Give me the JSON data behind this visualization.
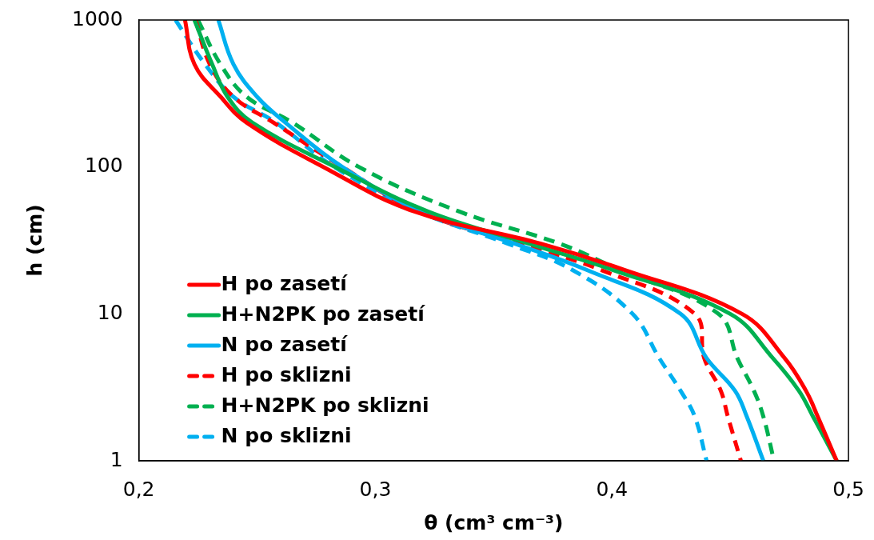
{
  "chart_data": {
    "type": "line",
    "xlabel": "θ (cm³ cm⁻³)",
    "ylabel": "h (cm)",
    "log": "y",
    "xlim": [
      0.2,
      0.5
    ],
    "ylim": [
      1,
      1000
    ],
    "xticks": [
      {
        "value": 0.2,
        "label": "0,2"
      },
      {
        "value": 0.3,
        "label": "0,3"
      },
      {
        "value": 0.4,
        "label": "0,4"
      },
      {
        "value": 0.5,
        "label": "0,5"
      }
    ],
    "yticks": [
      1,
      10,
      100,
      1000
    ],
    "grid": false,
    "legend": "bottom left",
    "marker": "none",
    "series": [
      {
        "name": "H po zasetí",
        "color": "#ff0000",
        "line_style": "solid",
        "x": [
          0.2195,
          0.2235,
          0.2346,
          0.2456,
          0.278,
          0.316,
          0.37,
          0.405,
          0.455,
          0.473,
          0.482,
          0.487,
          0.495
        ],
        "values": [
          1000,
          500,
          300,
          200,
          100,
          50,
          30,
          20,
          10,
          5,
          3,
          2,
          1
        ]
      },
      {
        "name": "H+N2PK po zasetí",
        "color": "#00b050",
        "line_style": "solid",
        "x": [
          0.2235,
          0.231,
          0.2375,
          0.248,
          0.283,
          0.322,
          0.365,
          0.4,
          0.45,
          0.468,
          0.479,
          0.485,
          0.495
        ],
        "values": [
          1000,
          500,
          300,
          200,
          100,
          50,
          30,
          20,
          10,
          5,
          3,
          2,
          1
        ]
      },
      {
        "name": "N po zasetí",
        "color": "#00b0f0",
        "line_style": "solid",
        "x": [
          0.2336,
          0.24,
          0.25,
          0.262,
          0.286,
          0.319,
          0.359,
          0.389,
          0.429,
          0.44,
          0.452,
          0.457,
          0.464
        ],
        "values": [
          1000,
          500,
          300,
          200,
          100,
          50,
          30,
          20,
          10,
          5,
          3,
          2,
          1
        ]
      },
      {
        "name": "H po sklizni",
        "color": "#ff0000",
        "line_style": "dashed",
        "x": [
          0.224,
          0.23,
          0.24,
          0.257,
          0.286,
          0.318,
          0.361,
          0.395,
          0.435,
          0.439,
          0.446,
          0.449,
          0.4545
        ],
        "values": [
          1000,
          500,
          300,
          200,
          100,
          50,
          30,
          20,
          10,
          5,
          3,
          2,
          1
        ]
      },
      {
        "name": "H+N2PK po sklizni",
        "color": "#00b050",
        "line_style": "dashed",
        "x": [
          0.225,
          0.2345,
          0.2456,
          0.265,
          0.293,
          0.335,
          0.378,
          0.403,
          0.445,
          0.453,
          0.46,
          0.464,
          0.4685
        ],
        "values": [
          1000,
          500,
          300,
          200,
          100,
          50,
          30,
          20,
          10,
          5,
          3,
          2,
          1
        ]
      },
      {
        "name": "N po sklizni",
        "color": "#00b0f0",
        "line_style": "dashed",
        "x": [
          0.2155,
          0.228,
          0.24,
          0.258,
          0.2826,
          0.318,
          0.356,
          0.383,
          0.4087,
          0.42,
          0.429,
          0.435,
          0.44
        ],
        "values": [
          1000,
          500,
          300,
          200,
          100,
          50,
          30,
          20,
          10,
          5,
          3,
          2,
          1
        ]
      }
    ]
  }
}
